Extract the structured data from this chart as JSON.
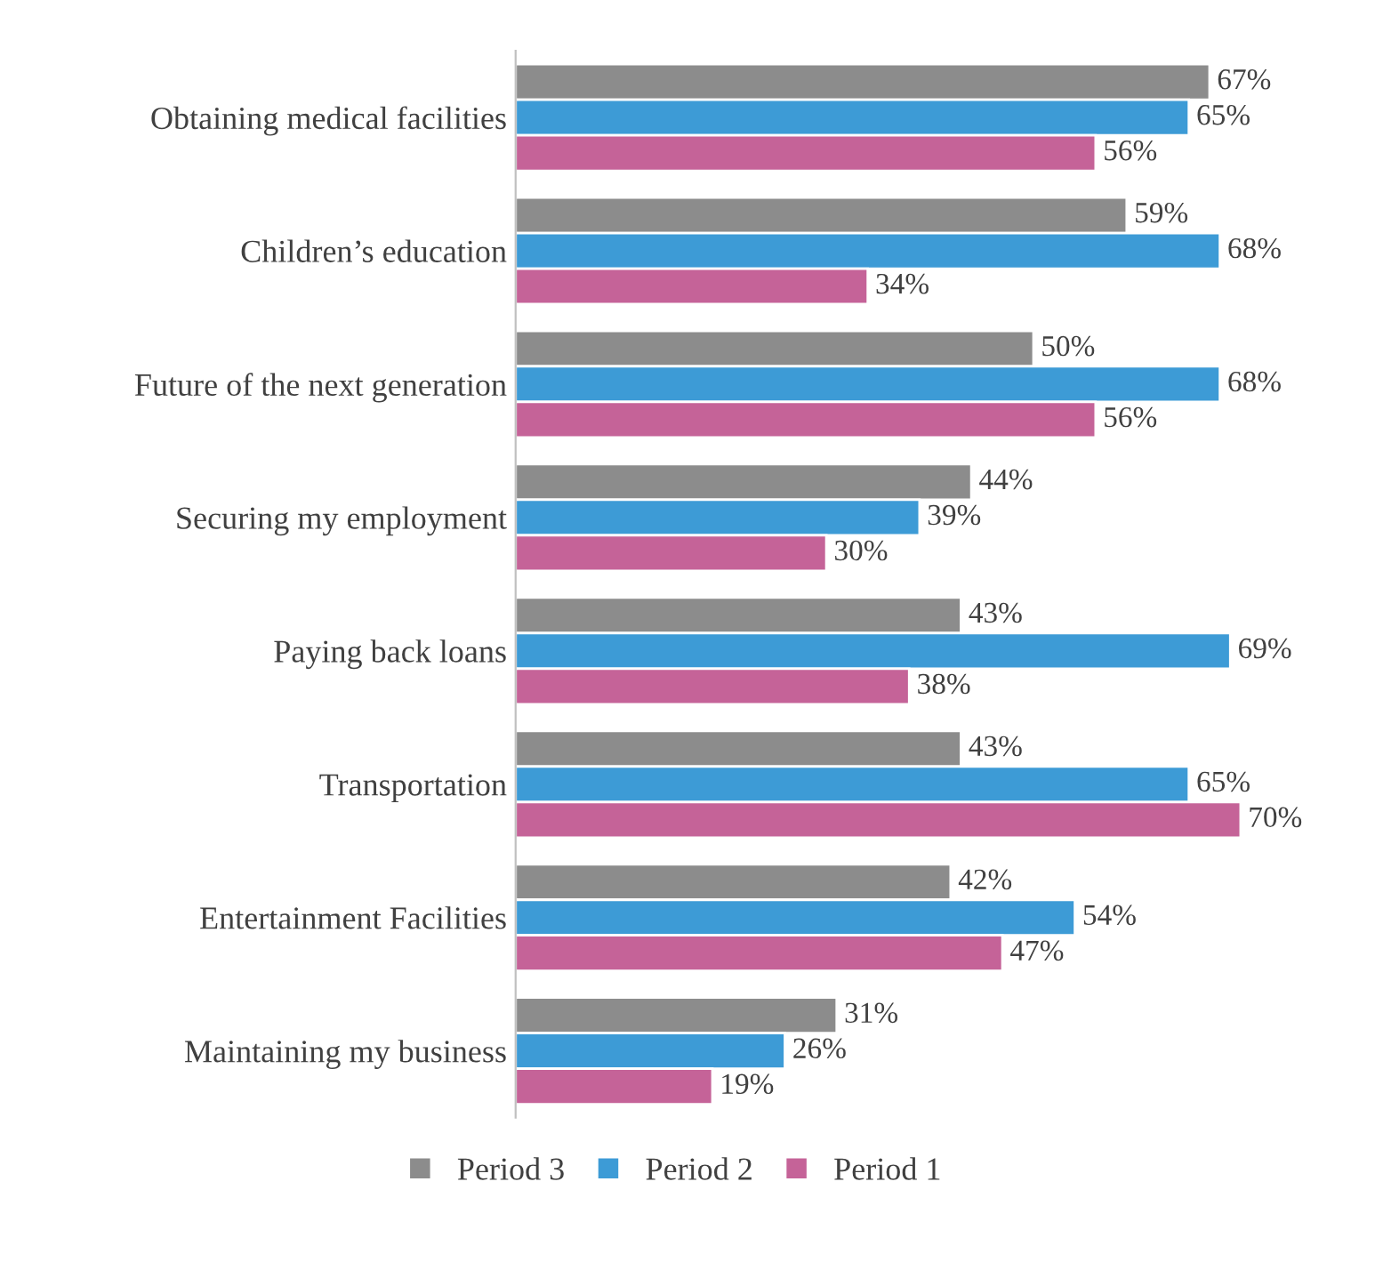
{
  "chart_data": {
    "type": "bar",
    "orientation": "horizontal",
    "categories": [
      "Obtaining medical facilities",
      "Children’s education",
      "Future of the next generation",
      "Securing my employment",
      "Paying back loans",
      "Transportation",
      "Entertainment Facilities",
      "Maintaining my business"
    ],
    "series": [
      {
        "name": "Period 3",
        "color": "#8c8c8c",
        "values": [
          67,
          59,
          50,
          44,
          43,
          43,
          42,
          31
        ],
        "value_labels": [
          "67%",
          "59%",
          "50%",
          "44%",
          "43%",
          "43%",
          "42%",
          "31%"
        ]
      },
      {
        "name": "Period 2",
        "color": "#3d9bd6",
        "values": [
          65,
          68,
          68,
          39,
          69,
          65,
          54,
          26
        ],
        "value_labels": [
          "65%",
          "68%",
          "68%",
          "39%",
          "69%",
          "65%",
          "54%",
          "26%"
        ]
      },
      {
        "name": "Period 1",
        "color": "#c56398",
        "values": [
          56,
          34,
          56,
          30,
          38,
          70,
          47,
          19
        ],
        "value_labels": [
          "56%",
          "34%",
          "56%",
          "30%",
          "38%",
          "70%",
          "47%",
          "19%"
        ]
      }
    ],
    "legend": "bottom",
    "grid": false,
    "tick_labels": "y"
  }
}
